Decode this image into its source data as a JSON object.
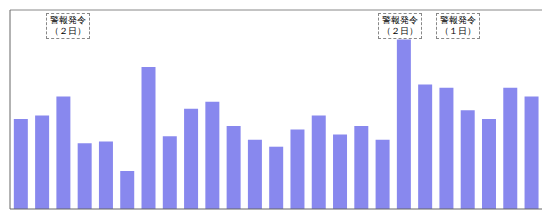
{
  "chart_data": {
    "type": "bar",
    "values": [
      52,
      54,
      65,
      38,
      39,
      22,
      82,
      42,
      58,
      62,
      48,
      40,
      36,
      46,
      54,
      43,
      48,
      40,
      98,
      72,
      70,
      57,
      52,
      70,
      65
    ],
    "color": "#8888ee",
    "ylim": [
      0,
      115
    ],
    "grid": false,
    "tick_labels": false,
    "annotations": [
      "警報発令\n（２日）",
      "警報発令\n（２日）",
      "警報発令\n（１日）"
    ]
  }
}
